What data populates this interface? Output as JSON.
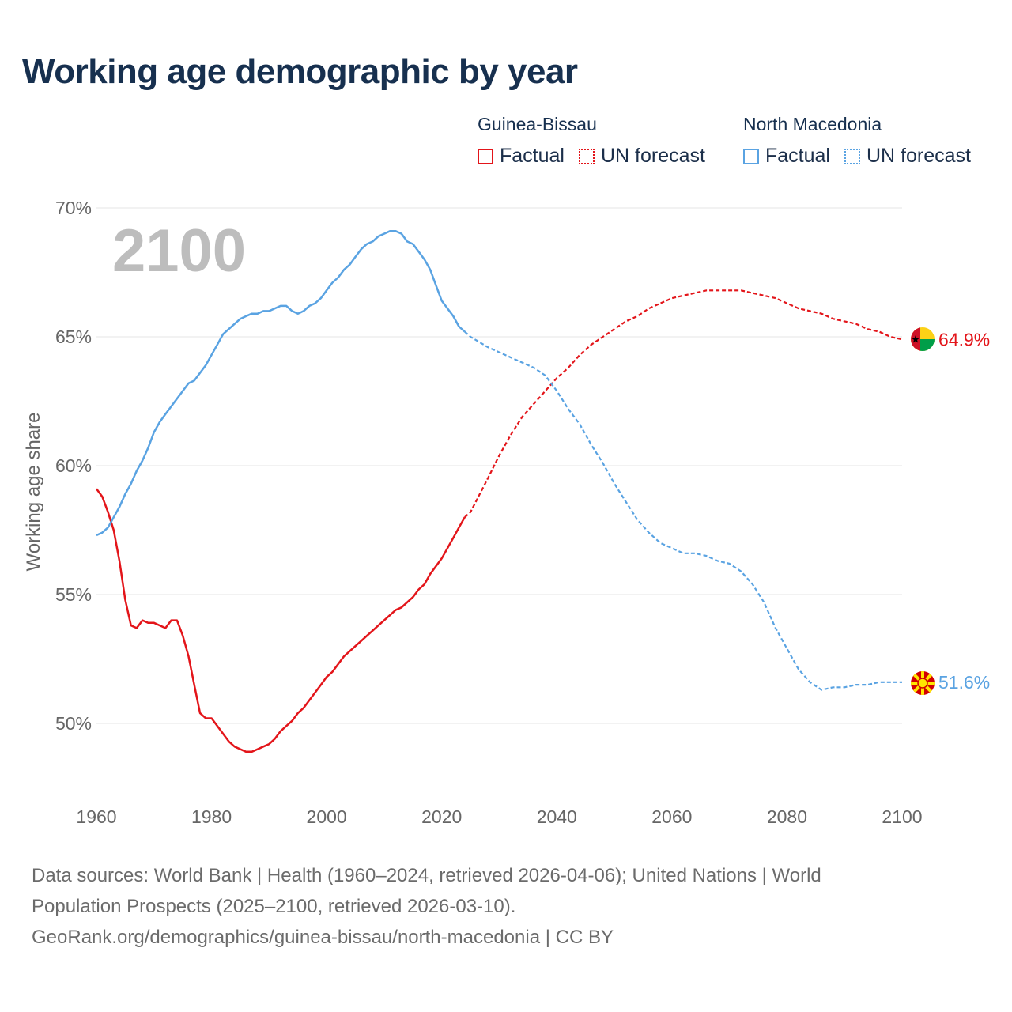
{
  "title": "Working age demographic by year",
  "legend": {
    "groups": [
      {
        "name": "Guinea-Bissau",
        "factual_label": "Factual",
        "forecast_label": "UN forecast",
        "color": "#e3151a"
      },
      {
        "name": "North Macedonia",
        "factual_label": "Factual",
        "forecast_label": "UN forecast",
        "color": "#5aa3e2"
      }
    ]
  },
  "footer": {
    "line1": "Data sources: World Bank | Health (1960–2024, retrieved 2026-04-06); United Nations | World",
    "line2": "Population Prospects (2025–2100, retrieved 2026-03-10).",
    "line3": "GeoRank.org/demographics/guinea-bissau/north-macedonia | CC BY"
  },
  "chart_data": {
    "type": "line",
    "title": "Working age demographic by year",
    "ylabel": "Working age share",
    "xlabel": "",
    "xlim": [
      1960,
      2100
    ],
    "ylim": [
      47.3,
      70
    ],
    "yticks": [
      50,
      55,
      60,
      65,
      70
    ],
    "ytick_labels": [
      "50%",
      "55%",
      "60%",
      "65%",
      "70%"
    ],
    "xticks": [
      1960,
      1980,
      2000,
      2020,
      2040,
      2060,
      2080,
      2100
    ],
    "xtick_labels": [
      "1960",
      "1980",
      "2000",
      "2020",
      "2040",
      "2060",
      "2080",
      "2100"
    ],
    "year_watermark": "2100",
    "grid": true,
    "legend_position": "top-right",
    "factual_end_year": 2024,
    "series": [
      {
        "name": "Guinea-Bissau",
        "color": "#e3151a",
        "end_label": "64.9%",
        "x": [
          1960,
          1961,
          1962,
          1963,
          1964,
          1965,
          1966,
          1967,
          1968,
          1969,
          1970,
          1971,
          1972,
          1973,
          1974,
          1975,
          1976,
          1977,
          1978,
          1979,
          1980,
          1981,
          1982,
          1983,
          1984,
          1985,
          1986,
          1987,
          1988,
          1989,
          1990,
          1991,
          1992,
          1993,
          1994,
          1995,
          1996,
          1997,
          1998,
          1999,
          2000,
          2001,
          2002,
          2003,
          2004,
          2005,
          2006,
          2007,
          2008,
          2009,
          2010,
          2011,
          2012,
          2013,
          2014,
          2015,
          2016,
          2017,
          2018,
          2019,
          2020,
          2021,
          2022,
          2023,
          2024,
          2025,
          2028,
          2030,
          2032,
          2034,
          2036,
          2038,
          2040,
          2042,
          2044,
          2046,
          2048,
          2050,
          2052,
          2054,
          2056,
          2058,
          2060,
          2062,
          2064,
          2066,
          2068,
          2070,
          2072,
          2074,
          2076,
          2078,
          2080,
          2082,
          2084,
          2086,
          2088,
          2090,
          2092,
          2094,
          2096,
          2098,
          2100
        ],
        "values": [
          59.1,
          58.8,
          58.2,
          57.5,
          56.3,
          54.8,
          53.8,
          53.7,
          54.0,
          53.9,
          53.9,
          53.8,
          53.7,
          54.0,
          54.0,
          53.4,
          52.6,
          51.5,
          50.4,
          50.2,
          50.2,
          49.9,
          49.6,
          49.3,
          49.1,
          49.0,
          48.9,
          48.9,
          49.0,
          49.1,
          49.2,
          49.4,
          49.7,
          49.9,
          50.1,
          50.4,
          50.6,
          50.9,
          51.2,
          51.5,
          51.8,
          52.0,
          52.3,
          52.6,
          52.8,
          53.0,
          53.2,
          53.4,
          53.6,
          53.8,
          54.0,
          54.2,
          54.4,
          54.5,
          54.7,
          54.9,
          55.2,
          55.4,
          55.8,
          56.1,
          56.4,
          56.8,
          57.2,
          57.6,
          58.0,
          58.2,
          59.5,
          60.4,
          61.2,
          61.9,
          62.4,
          62.9,
          63.4,
          63.8,
          64.3,
          64.7,
          65.0,
          65.3,
          65.6,
          65.8,
          66.1,
          66.3,
          66.5,
          66.6,
          66.7,
          66.8,
          66.8,
          66.8,
          66.8,
          66.7,
          66.6,
          66.5,
          66.3,
          66.1,
          66.0,
          65.9,
          65.7,
          65.6,
          65.5,
          65.3,
          65.2,
          65.0,
          64.9
        ]
      },
      {
        "name": "North Macedonia",
        "color": "#5aa3e2",
        "end_label": "51.6%",
        "x": [
          1960,
          1961,
          1962,
          1963,
          1964,
          1965,
          1966,
          1967,
          1968,
          1969,
          1970,
          1971,
          1972,
          1973,
          1974,
          1975,
          1976,
          1977,
          1978,
          1979,
          1980,
          1981,
          1982,
          1983,
          1984,
          1985,
          1986,
          1987,
          1988,
          1989,
          1990,
          1991,
          1992,
          1993,
          1994,
          1995,
          1996,
          1997,
          1998,
          1999,
          2000,
          2001,
          2002,
          2003,
          2004,
          2005,
          2006,
          2007,
          2008,
          2009,
          2010,
          2011,
          2012,
          2013,
          2014,
          2015,
          2016,
          2017,
          2018,
          2019,
          2020,
          2021,
          2022,
          2023,
          2024,
          2025,
          2028,
          2030,
          2032,
          2034,
          2036,
          2038,
          2040,
          2042,
          2044,
          2046,
          2048,
          2050,
          2052,
          2054,
          2056,
          2058,
          2060,
          2062,
          2064,
          2066,
          2068,
          2070,
          2072,
          2074,
          2076,
          2078,
          2080,
          2082,
          2084,
          2086,
          2088,
          2090,
          2092,
          2094,
          2096,
          2098,
          2100
        ],
        "values": [
          57.3,
          57.4,
          57.6,
          58.0,
          58.4,
          58.9,
          59.3,
          59.8,
          60.2,
          60.7,
          61.3,
          61.7,
          62.0,
          62.3,
          62.6,
          62.9,
          63.2,
          63.3,
          63.6,
          63.9,
          64.3,
          64.7,
          65.1,
          65.3,
          65.5,
          65.7,
          65.8,
          65.9,
          65.9,
          66.0,
          66.0,
          66.1,
          66.2,
          66.2,
          66.0,
          65.9,
          66.0,
          66.2,
          66.3,
          66.5,
          66.8,
          67.1,
          67.3,
          67.6,
          67.8,
          68.1,
          68.4,
          68.6,
          68.7,
          68.9,
          69.0,
          69.1,
          69.1,
          69.0,
          68.7,
          68.6,
          68.3,
          68.0,
          67.6,
          67.0,
          66.4,
          66.1,
          65.8,
          65.4,
          65.2,
          65.0,
          64.6,
          64.4,
          64.2,
          64.0,
          63.8,
          63.5,
          62.9,
          62.2,
          61.6,
          60.8,
          60.1,
          59.3,
          58.6,
          57.9,
          57.4,
          57.0,
          56.8,
          56.6,
          56.6,
          56.5,
          56.3,
          56.2,
          55.9,
          55.4,
          54.7,
          53.7,
          52.9,
          52.1,
          51.6,
          51.3,
          51.4,
          51.4,
          51.5,
          51.5,
          51.6,
          51.6,
          51.6
        ]
      }
    ]
  }
}
